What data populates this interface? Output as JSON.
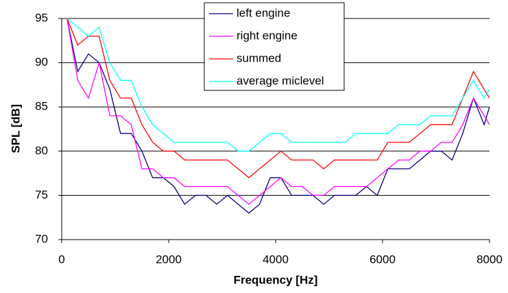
{
  "chart_data": {
    "type": "line",
    "xlabel": "Frequency [Hz]",
    "ylabel": "SPL [dB]",
    "x": [
      100,
      300,
      500,
      700,
      900,
      1100,
      1300,
      1500,
      1700,
      1900,
      2100,
      2300,
      2500,
      2700,
      2900,
      3100,
      3300,
      3500,
      3700,
      3900,
      4100,
      4300,
      4500,
      4700,
      4900,
      5100,
      5300,
      5500,
      5700,
      5900,
      6100,
      6300,
      6500,
      6700,
      6900,
      7100,
      7300,
      7500,
      7700,
      7900,
      8000
    ],
    "series": [
      {
        "name": "left engine",
        "color": "#000080",
        "values": [
          95,
          89,
          91,
          90,
          87,
          82,
          82,
          80,
          77,
          77,
          76,
          74,
          75,
          75,
          74,
          75,
          74,
          73,
          74,
          77,
          77,
          75,
          75,
          75,
          74,
          75,
          75,
          75,
          76,
          75,
          78,
          78,
          78,
          79,
          80,
          80,
          79,
          82,
          86,
          83,
          85
        ]
      },
      {
        "name": "right engine",
        "color": "#ff00ff",
        "values": [
          95,
          88,
          86,
          90,
          84,
          84,
          83,
          78,
          78,
          77,
          77,
          76,
          76,
          76,
          76,
          76,
          75,
          74,
          75,
          76,
          77,
          76,
          76,
          75,
          75,
          76,
          76,
          76,
          76,
          77,
          78,
          79,
          79,
          80,
          80,
          81,
          81,
          83,
          86,
          84,
          83
        ]
      },
      {
        "name": "summed",
        "color": "#ff0000",
        "values": [
          95,
          92,
          93,
          93,
          88,
          86,
          86,
          83,
          81,
          80,
          80,
          79,
          79,
          79,
          79,
          79,
          78,
          77,
          78,
          79,
          80,
          79,
          79,
          79,
          78,
          79,
          79,
          79,
          79,
          79,
          81,
          81,
          81,
          82,
          83,
          83,
          83,
          86,
          89,
          87,
          86
        ]
      },
      {
        "name": "average miclevel",
        "color": "#00ffff",
        "values": [
          95,
          94,
          93,
          94,
          90,
          88,
          88,
          85,
          83,
          82,
          81,
          81,
          81,
          81,
          81,
          81,
          80,
          80,
          81,
          82,
          82,
          81,
          81,
          81,
          81,
          81,
          81,
          82,
          82,
          82,
          82,
          83,
          83,
          83,
          84,
          84,
          84,
          86,
          88,
          86,
          87
        ]
      }
    ],
    "xlim": [
      0,
      8000
    ],
    "xticks": [
      0,
      2000,
      4000,
      6000,
      8000
    ],
    "ylim": [
      70,
      95
    ],
    "yticks": [
      70,
      75,
      80,
      85,
      90,
      95
    ],
    "grid": true
  }
}
